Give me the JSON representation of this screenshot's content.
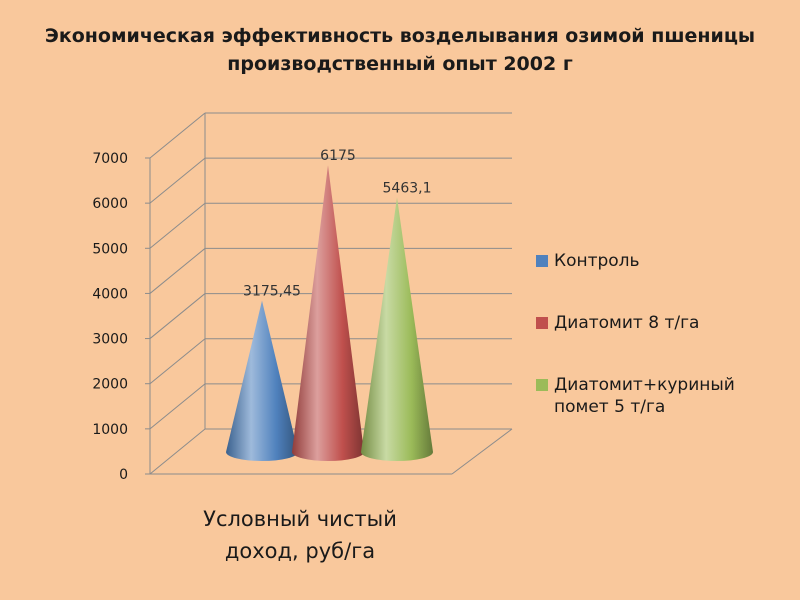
{
  "title_line1": "Экономическая эффективность возделывания озимой пшеницы",
  "title_line2": "производственный опыт 2002 г",
  "chart_data": {
    "type": "bar",
    "shape": "cone-3d",
    "categories": [
      "Условный чистый доход, руб/га"
    ],
    "category_label": "Условный чистый доход, руб/га",
    "series": [
      {
        "name": "Контроль",
        "values": [
          3175.45
        ],
        "label": "3175,45",
        "color": "#4f81bd"
      },
      {
        "name": "Диатомит 8 т/га",
        "values": [
          6175
        ],
        "label": "6175",
        "color": "#c0504d"
      },
      {
        "name": "Диатомит+куриный помет 5 т/га",
        "values": [
          5463.1
        ],
        "label": "5463,1",
        "color": "#9bbb59"
      }
    ],
    "ylim": [
      0,
      7000
    ],
    "yticks": [
      "0",
      "1000",
      "2000",
      "3000",
      "4000",
      "5000",
      "6000",
      "7000"
    ],
    "grid": true,
    "legend": "right"
  }
}
